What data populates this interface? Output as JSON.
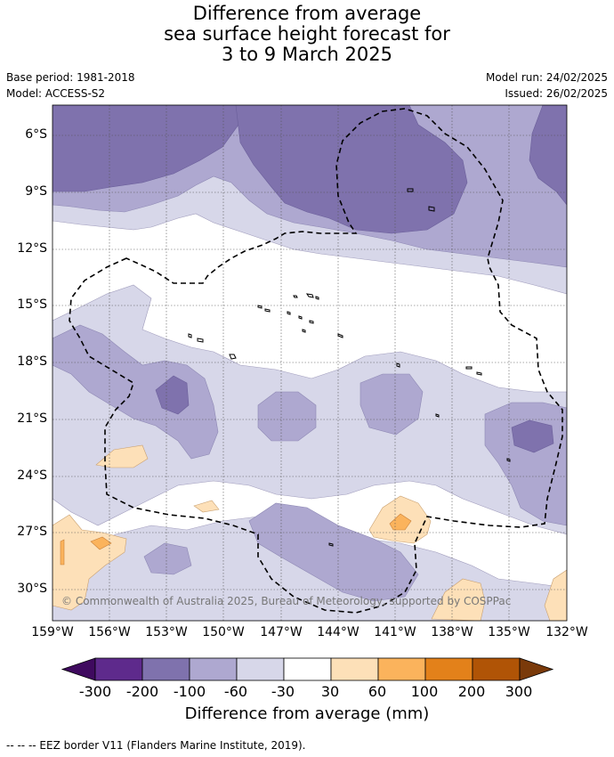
{
  "title": [
    "Difference from average",
    "sea surface height forecast for",
    "3 to 9 March 2025"
  ],
  "meta_left": [
    "Base period: 1981-2018",
    "Model: ACCESS-S2"
  ],
  "meta_right": [
    "Model run: 24/02/2025",
    "Issued: 26/02/2025"
  ],
  "copyright": "© Commonwealth of Australia 2025, Bureau of Meteorology, supported by COSPPac",
  "lat_labels": [
    "6°S",
    "9°S",
    "12°S",
    "15°S",
    "18°S",
    "21°S",
    "24°S",
    "27°S",
    "30°S"
  ],
  "lon_labels": [
    "159°W",
    "156°W",
    "153°W",
    "150°W",
    "147°W",
    "144°W",
    "141°W",
    "138°W",
    "135°W",
    "132°W"
  ],
  "colorbar": {
    "ticks": [
      "-300",
      "-200",
      "-100",
      "-60",
      "-30",
      "30",
      "60",
      "100",
      "200",
      "300"
    ],
    "colors": [
      "#3f0a5f",
      "#5e2a8c",
      "#7f72ad",
      "#aea8d0",
      "#d7d7e9",
      "#ffffff",
      "#fde0b8",
      "#fbb35c",
      "#e3811a",
      "#b05406",
      "#7a3a0a"
    ],
    "label": "Difference from average (mm)"
  },
  "footnote": "--  --  -- EEZ border V11 (Flanders Marine Institute, 2019)."
}
